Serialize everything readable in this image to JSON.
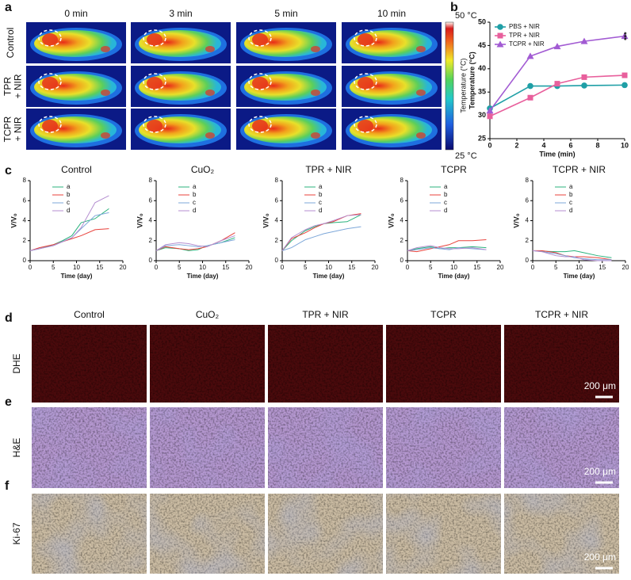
{
  "panel_letters": [
    "a",
    "b",
    "c",
    "d",
    "e",
    "f"
  ],
  "thermal": {
    "columns": [
      "0 min",
      "3 min",
      "5 min",
      "10 min"
    ],
    "rows": [
      [
        "Control"
      ],
      [
        "TPR",
        "+ NIR"
      ],
      [
        "TCPR",
        "+ NIR"
      ]
    ],
    "colorbar": {
      "max_label": "50 °C",
      "min_label": "25 °C",
      "title": "Temperature (°C)"
    }
  },
  "staining": {
    "columns": [
      "Control",
      "CuO₂",
      "TPR + NIR",
      "TCPR",
      "TCPR + NIR"
    ],
    "rows": [
      "DHE",
      "H&E",
      "Ki-67"
    ],
    "scale_bars": [
      "200 μm",
      "200 μm",
      "200 μm"
    ]
  },
  "chart_data": [
    {
      "type": "line",
      "xlabel": "Time (min)",
      "ylabel": "Temperature (°C)",
      "annotation": "***",
      "x": [
        0,
        3,
        5,
        7,
        10
      ],
      "xlim": [
        0,
        10
      ],
      "xticks": [
        0,
        2,
        4,
        6,
        8,
        10
      ],
      "ylim": [
        25,
        50
      ],
      "yticks": [
        25,
        30,
        35,
        40,
        45,
        50
      ],
      "legend": "upper left",
      "series": [
        {
          "name": "PBS + NIR",
          "color": "#1f9fa6",
          "marker": "circle",
          "values": [
            31.5,
            36.3,
            36.3,
            36.4,
            36.5
          ]
        },
        {
          "name": "TPR + NIR",
          "color": "#e85f9c",
          "marker": "square",
          "values": [
            29.8,
            33.8,
            36.8,
            38.2,
            38.6
          ]
        },
        {
          "name": "TCPR + NIR",
          "color": "#a25bd3",
          "marker": "triangle",
          "values": [
            31.0,
            42.7,
            44.8,
            45.9,
            47.0
          ]
        }
      ]
    },
    {
      "type": "line",
      "title": "Control",
      "xlabel": "Time (day)",
      "ylabel": "V/V₀",
      "x": [
        0,
        2,
        5,
        7,
        9,
        11,
        14,
        17
      ],
      "xlim": [
        0,
        20
      ],
      "xticks": [
        0,
        5,
        10,
        15,
        20
      ],
      "ylim": [
        0,
        8
      ],
      "yticks": [
        0,
        2,
        4,
        6,
        8
      ],
      "legend": "upper left",
      "series": [
        {
          "name": "a",
          "color": "#2bb37d",
          "values": [
            1,
            1.2,
            1.6,
            2.0,
            2.5,
            3.8,
            4.2,
            5.2
          ]
        },
        {
          "name": "b",
          "color": "#e8413b",
          "values": [
            1,
            1.3,
            1.6,
            1.9,
            2.2,
            2.5,
            3.1,
            3.2
          ]
        },
        {
          "name": "c",
          "color": "#7da7d9",
          "values": [
            1,
            1.2,
            1.5,
            1.9,
            2.3,
            3.2,
            4.5,
            4.8
          ]
        },
        {
          "name": "d",
          "color": "#b48ed0",
          "values": [
            1,
            1.2,
            1.5,
            1.9,
            2.3,
            3.3,
            5.8,
            6.5
          ]
        }
      ]
    },
    {
      "type": "line",
      "title": "CuO₂",
      "xlabel": "Time (day)",
      "ylabel": "V/V₀",
      "x": [
        0,
        2,
        5,
        7,
        9,
        11,
        14,
        17
      ],
      "xlim": [
        0,
        20
      ],
      "xticks": [
        0,
        5,
        10,
        15,
        20
      ],
      "ylim": [
        0,
        8
      ],
      "yticks": [
        0,
        2,
        4,
        6,
        8
      ],
      "legend": "upper left",
      "series": [
        {
          "name": "a",
          "color": "#2bb37d",
          "values": [
            1,
            1.3,
            1.2,
            1.0,
            1.1,
            1.5,
            1.8,
            2.3
          ]
        },
        {
          "name": "b",
          "color": "#e8413b",
          "values": [
            1,
            1.4,
            1.2,
            1.1,
            1.2,
            1.4,
            2.0,
            2.8
          ]
        },
        {
          "name": "c",
          "color": "#7da7d9",
          "values": [
            1,
            1.5,
            1.6,
            1.5,
            1.4,
            1.5,
            1.8,
            2.1
          ]
        },
        {
          "name": "d",
          "color": "#b48ed0",
          "values": [
            1,
            1.6,
            1.8,
            1.7,
            1.5,
            1.4,
            2.0,
            2.5
          ]
        }
      ]
    },
    {
      "type": "line",
      "title": "TPR + NIR",
      "xlabel": "Time (day)",
      "ylabel": "V/V₀",
      "x": [
        0,
        2,
        5,
        7,
        9,
        11,
        14,
        17
      ],
      "xlim": [
        0,
        20
      ],
      "xticks": [
        0,
        5,
        10,
        15,
        20
      ],
      "ylim": [
        0,
        8
      ],
      "yticks": [
        0,
        2,
        4,
        6,
        8
      ],
      "legend": "upper left",
      "series": [
        {
          "name": "a",
          "color": "#2bb37d",
          "values": [
            1,
            2.0,
            3.0,
            3.4,
            3.7,
            3.8,
            3.9,
            4.6
          ]
        },
        {
          "name": "b",
          "color": "#e8413b",
          "values": [
            1,
            2.2,
            2.8,
            3.3,
            3.7,
            3.9,
            4.5,
            4.7
          ]
        },
        {
          "name": "c",
          "color": "#7da7d9",
          "values": [
            1,
            1.3,
            2.1,
            2.4,
            2.7,
            2.9,
            3.2,
            3.4
          ]
        },
        {
          "name": "d",
          "color": "#b48ed0",
          "values": [
            1,
            2.3,
            3.1,
            3.5,
            3.7,
            4.0,
            4.5,
            4.6
          ]
        }
      ]
    },
    {
      "type": "line",
      "title": "TCPR",
      "xlabel": "Time (day)",
      "ylabel": "V/V₀",
      "x": [
        0,
        2,
        5,
        7,
        9,
        11,
        14,
        17
      ],
      "xlim": [
        0,
        20
      ],
      "xticks": [
        0,
        5,
        10,
        15,
        20
      ],
      "ylim": [
        0,
        8
      ],
      "yticks": [
        0,
        2,
        4,
        6,
        8
      ],
      "legend": "upper left",
      "series": [
        {
          "name": "a",
          "color": "#2bb37d",
          "values": [
            1,
            1.2,
            1.4,
            1.2,
            1.3,
            1.3,
            1.4,
            1.3
          ]
        },
        {
          "name": "b",
          "color": "#e8413b",
          "values": [
            1,
            0.9,
            1.2,
            1.4,
            1.6,
            2.0,
            2.0,
            2.1
          ]
        },
        {
          "name": "c",
          "color": "#7da7d9",
          "values": [
            1,
            1.1,
            1.3,
            1.2,
            1.1,
            1.3,
            1.2,
            1.1
          ]
        },
        {
          "name": "d",
          "color": "#b48ed0",
          "values": [
            1,
            1.3,
            1.5,
            1.3,
            1.2,
            1.2,
            1.3,
            1.1
          ]
        }
      ]
    },
    {
      "type": "line",
      "title": "TCPR + NIR",
      "xlabel": "Time (day)",
      "ylabel": "V/V₀",
      "x": [
        0,
        2,
        5,
        7,
        9,
        11,
        14,
        17
      ],
      "xlim": [
        0,
        20
      ],
      "xticks": [
        0,
        5,
        10,
        15,
        20
      ],
      "ylim": [
        0,
        8
      ],
      "yticks": [
        0,
        2,
        4,
        6,
        8
      ],
      "legend": "upper left",
      "series": [
        {
          "name": "a",
          "color": "#2bb37d",
          "values": [
            1,
            0.95,
            0.9,
            0.9,
            1.0,
            0.8,
            0.5,
            0.3
          ]
        },
        {
          "name": "b",
          "color": "#e8413b",
          "values": [
            1,
            1.0,
            0.8,
            0.5,
            0.4,
            0.4,
            0.3,
            0.1
          ]
        },
        {
          "name": "c",
          "color": "#7da7d9",
          "values": [
            1,
            0.9,
            0.7,
            0.5,
            0.3,
            0.2,
            0.1,
            0.1
          ]
        },
        {
          "name": "d",
          "color": "#b48ed0",
          "values": [
            1,
            0.9,
            0.5,
            0.4,
            0.4,
            0.1,
            0.0,
            0.0
          ]
        }
      ]
    }
  ]
}
